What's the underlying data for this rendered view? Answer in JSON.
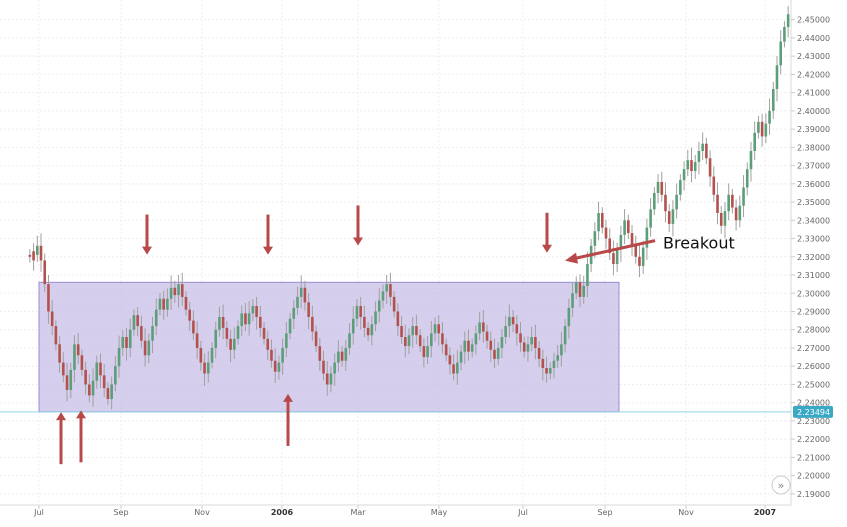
{
  "chart_data": {
    "type": "candlestick",
    "y_ticks": [
      "2.19000",
      "2.20000",
      "2.21000",
      "2.22000",
      "2.23000",
      "2.24000",
      "2.25000",
      "2.26000",
      "2.27000",
      "2.28000",
      "2.29000",
      "2.30000",
      "2.31000",
      "2.32000",
      "2.33000",
      "2.34000",
      "2.35000",
      "2.36000",
      "2.37000",
      "2.38000",
      "2.39000",
      "2.40000",
      "2.41000",
      "2.42000",
      "2.43000",
      "2.44000",
      "2.45000"
    ],
    "y_range": [
      2.185,
      2.4575
    ],
    "x_ticks": [
      {
        "label": "Jul",
        "bold": false
      },
      {
        "label": "Sep",
        "bold": false
      },
      {
        "label": "Nov",
        "bold": false
      },
      {
        "label": "2006",
        "bold": true
      },
      {
        "label": "Mar",
        "bold": false
      },
      {
        "label": "May",
        "bold": false
      },
      {
        "label": "Jul",
        "bold": false
      },
      {
        "label": "Sep",
        "bold": false
      },
      {
        "label": "Nov",
        "bold": false
      },
      {
        "label": "2007",
        "bold": true
      }
    ],
    "range_band": {
      "low": 2.235,
      "high": 2.306
    },
    "current_price": "2.23494",
    "current_price_value": 2.23494,
    "annotation": "Breakout",
    "colors": {
      "up": "#5b9e79",
      "down": "#b3514c",
      "wick": "#a0a0a0",
      "band": "#c7bde6",
      "band_edge": "#9a8cd0",
      "arrow": "#b94848",
      "price_line": "#8fd3e6",
      "price_label": "#3aa9c6"
    },
    "top_arrows_price": [
      2.319,
      2.319,
      2.324,
      2.32
    ],
    "bottom_arrows_price": [
      2.237,
      2.238,
      2.247
    ],
    "breakout_arrow_price": 2.319,
    "path": [
      [
        2.321,
        2.32
      ],
      [
        2.323,
        2.318
      ],
      [
        2.321,
        2.326
      ],
      [
        2.326,
        2.318
      ],
      [
        2.318,
        2.305
      ],
      [
        2.305,
        2.29
      ],
      [
        2.29,
        2.282
      ],
      [
        2.282,
        2.272
      ],
      [
        2.272,
        2.262
      ],
      [
        2.262,
        2.255
      ],
      [
        2.255,
        2.247
      ],
      [
        2.247,
        2.258
      ],
      [
        2.258,
        2.272
      ],
      [
        2.272,
        2.266
      ],
      [
        2.266,
        2.258
      ],
      [
        2.258,
        2.25
      ],
      [
        2.25,
        2.244
      ],
      [
        2.244,
        2.252
      ],
      [
        2.252,
        2.262
      ],
      [
        2.262,
        2.255
      ],
      [
        2.255,
        2.248
      ],
      [
        2.248,
        2.242
      ],
      [
        2.242,
        2.25
      ],
      [
        2.25,
        2.26
      ],
      [
        2.26,
        2.27
      ],
      [
        2.27,
        2.276
      ],
      [
        2.276,
        2.27
      ],
      [
        2.27,
        2.28
      ],
      [
        2.28,
        2.288
      ],
      [
        2.288,
        2.282
      ],
      [
        2.282,
        2.274
      ],
      [
        2.274,
        2.266
      ],
      [
        2.266,
        2.274
      ],
      [
        2.274,
        2.282
      ],
      [
        2.282,
        2.291
      ],
      [
        2.291,
        2.297
      ],
      [
        2.297,
        2.291
      ],
      [
        2.291,
        2.297
      ],
      [
        2.297,
        2.303
      ],
      [
        2.303,
        2.299
      ],
      [
        2.299,
        2.305
      ],
      [
        2.305,
        2.298
      ],
      [
        2.298,
        2.291
      ],
      [
        2.291,
        2.285
      ],
      [
        2.285,
        2.278
      ],
      [
        2.278,
        2.27
      ],
      [
        2.27,
        2.262
      ],
      [
        2.262,
        2.256
      ],
      [
        2.256,
        2.262
      ],
      [
        2.262,
        2.27
      ],
      [
        2.27,
        2.28
      ],
      [
        2.28,
        2.287
      ],
      [
        2.287,
        2.281
      ],
      [
        2.281,
        2.275
      ],
      [
        2.275,
        2.269
      ],
      [
        2.269,
        2.275
      ],
      [
        2.275,
        2.282
      ],
      [
        2.282,
        2.289
      ],
      [
        2.289,
        2.283
      ],
      [
        2.283,
        2.289
      ],
      [
        2.289,
        2.293
      ],
      [
        2.293,
        2.287
      ],
      [
        2.287,
        2.281
      ],
      [
        2.281,
        2.275
      ],
      [
        2.275,
        2.269
      ],
      [
        2.269,
        2.263
      ],
      [
        2.263,
        2.257
      ],
      [
        2.257,
        2.262
      ],
      [
        2.262,
        2.27
      ],
      [
        2.27,
        2.278
      ],
      [
        2.278,
        2.286
      ],
      [
        2.286,
        2.292
      ],
      [
        2.292,
        2.298
      ],
      [
        2.298,
        2.303
      ],
      [
        2.303,
        2.295
      ],
      [
        2.295,
        2.287
      ],
      [
        2.287,
        2.279
      ],
      [
        2.279,
        2.271
      ],
      [
        2.271,
        2.263
      ],
      [
        2.263,
        2.256
      ],
      [
        2.256,
        2.25
      ],
      [
        2.25,
        2.256
      ],
      [
        2.256,
        2.262
      ],
      [
        2.262,
        2.268
      ],
      [
        2.268,
        2.263
      ],
      [
        2.263,
        2.27
      ],
      [
        2.27,
        2.278
      ],
      [
        2.278,
        2.286
      ],
      [
        2.286,
        2.293
      ],
      [
        2.293,
        2.287
      ],
      [
        2.287,
        2.281
      ],
      [
        2.281,
        2.277
      ],
      [
        2.277,
        2.283
      ],
      [
        2.283,
        2.29
      ],
      [
        2.29,
        2.296
      ],
      [
        2.296,
        2.301
      ],
      [
        2.301,
        2.305
      ],
      [
        2.305,
        2.298
      ],
      [
        2.298,
        2.29
      ],
      [
        2.29,
        2.282
      ],
      [
        2.282,
        2.276
      ],
      [
        2.276,
        2.271
      ],
      [
        2.271,
        2.277
      ],
      [
        2.277,
        2.282
      ],
      [
        2.282,
        2.277
      ],
      [
        2.277,
        2.271
      ],
      [
        2.271,
        2.265
      ],
      [
        2.265,
        2.271
      ],
      [
        2.271,
        2.278
      ],
      [
        2.278,
        2.283
      ],
      [
        2.283,
        2.278
      ],
      [
        2.278,
        2.272
      ],
      [
        2.272,
        2.266
      ],
      [
        2.266,
        2.261
      ],
      [
        2.261,
        2.256
      ],
      [
        2.256,
        2.262
      ],
      [
        2.262,
        2.268
      ],
      [
        2.268,
        2.274
      ],
      [
        2.274,
        2.268
      ],
      [
        2.268,
        2.272
      ],
      [
        2.272,
        2.278
      ],
      [
        2.278,
        2.284
      ],
      [
        2.284,
        2.279
      ],
      [
        2.279,
        2.274
      ],
      [
        2.274,
        2.269
      ],
      [
        2.269,
        2.264
      ],
      [
        2.264,
        2.27
      ],
      [
        2.27,
        2.276
      ],
      [
        2.276,
        2.282
      ],
      [
        2.282,
        2.287
      ],
      [
        2.287,
        2.283
      ],
      [
        2.283,
        2.278
      ],
      [
        2.278,
        2.273
      ],
      [
        2.273,
        2.268
      ],
      [
        2.268,
        2.272
      ],
      [
        2.272,
        2.276
      ],
      [
        2.276,
        2.27
      ],
      [
        2.27,
        2.264
      ],
      [
        2.264,
        2.259
      ],
      [
        2.259,
        2.256
      ],
      [
        2.256,
        2.259
      ],
      [
        2.259,
        2.263
      ],
      [
        2.263,
        2.266
      ],
      [
        2.266,
        2.272
      ],
      [
        2.272,
        2.282
      ],
      [
        2.282,
        2.292
      ],
      [
        2.292,
        2.3
      ],
      [
        2.3,
        2.306
      ],
      [
        2.306,
        2.298
      ],
      [
        2.298,
        2.304
      ],
      [
        2.304,
        2.316
      ],
      [
        2.316,
        2.326
      ],
      [
        2.326,
        2.334
      ],
      [
        2.334,
        2.344
      ],
      [
        2.344,
        2.336
      ],
      [
        2.336,
        2.33
      ],
      [
        2.33,
        2.322
      ],
      [
        2.322,
        2.316
      ],
      [
        2.316,
        2.324
      ],
      [
        2.324,
        2.332
      ],
      [
        2.332,
        2.34
      ],
      [
        2.34,
        2.333
      ],
      [
        2.333,
        2.326
      ],
      [
        2.326,
        2.32
      ],
      [
        2.32,
        2.315
      ],
      [
        2.315,
        2.325
      ],
      [
        2.325,
        2.336
      ],
      [
        2.336,
        2.346
      ],
      [
        2.346,
        2.355
      ],
      [
        2.355,
        2.361
      ],
      [
        2.361,
        2.354
      ],
      [
        2.354,
        2.345
      ],
      [
        2.345,
        2.338
      ],
      [
        2.338,
        2.346
      ],
      [
        2.346,
        2.354
      ],
      [
        2.354,
        2.362
      ],
      [
        2.362,
        2.368
      ],
      [
        2.368,
        2.373
      ],
      [
        2.373,
        2.367
      ],
      [
        2.367,
        2.372
      ],
      [
        2.372,
        2.378
      ],
      [
        2.378,
        2.382
      ],
      [
        2.382,
        2.374
      ],
      [
        2.374,
        2.364
      ],
      [
        2.364,
        2.354
      ],
      [
        2.354,
        2.344
      ],
      [
        2.344,
        2.337
      ],
      [
        2.337,
        2.345
      ],
      [
        2.345,
        2.354
      ],
      [
        2.354,
        2.347
      ],
      [
        2.347,
        2.34
      ],
      [
        2.34,
        2.348
      ],
      [
        2.348,
        2.358
      ],
      [
        2.358,
        2.368
      ],
      [
        2.368,
        2.378
      ],
      [
        2.378,
        2.388
      ],
      [
        2.388,
        2.394
      ],
      [
        2.394,
        2.386
      ],
      [
        2.386,
        2.393
      ],
      [
        2.393,
        2.4
      ],
      [
        2.4,
        2.412
      ],
      [
        2.412,
        2.425
      ],
      [
        2.425,
        2.438
      ],
      [
        2.438,
        2.446
      ],
      [
        2.446,
        2.453
      ]
    ]
  }
}
